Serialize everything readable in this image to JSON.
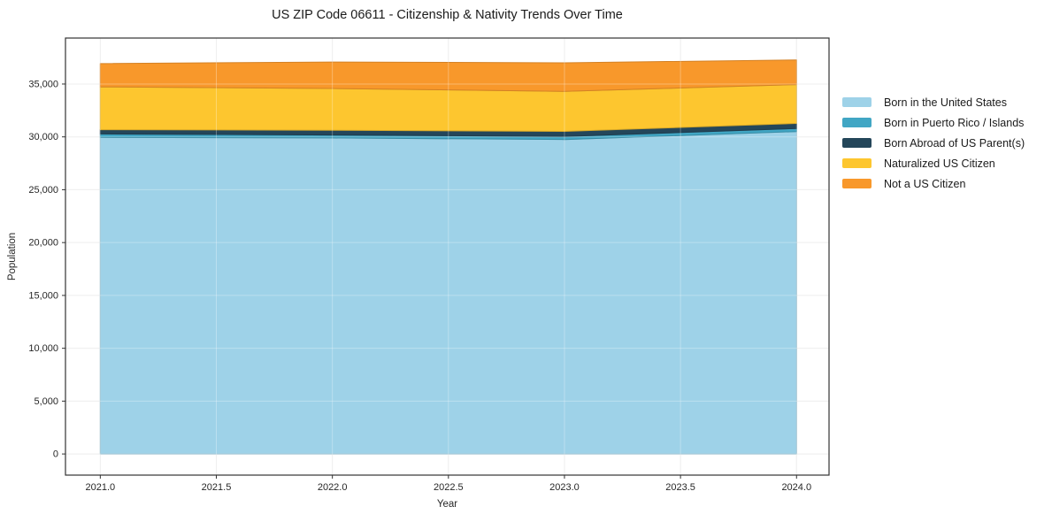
{
  "chart_data": {
    "type": "area",
    "stacked": true,
    "title": "US ZIP Code 06611 - Citizenship & Nativity Trends Over Time",
    "xlabel": "Year",
    "ylabel": "Population",
    "x": [
      2021,
      2022,
      2023,
      2024
    ],
    "series": [
      {
        "name": "Born in the United States",
        "color": "#9ed2e8",
        "values": [
          29950,
          29900,
          29750,
          30500
        ]
      },
      {
        "name": "Born in Puerto Rico / Islands",
        "color": "#41a6c4",
        "values": [
          330,
          280,
          290,
          290
        ]
      },
      {
        "name": "Born Abroad of US Parent(s)",
        "color": "#24465a",
        "values": [
          400,
          450,
          480,
          480
        ]
      },
      {
        "name": "Naturalized US Citizen",
        "color": "#fdc62f",
        "values": [
          4050,
          3950,
          3780,
          3680
        ]
      },
      {
        "name": "Not a US Citizen",
        "color": "#f8982b",
        "values": [
          2200,
          2500,
          2710,
          2330
        ]
      }
    ],
    "xlim": [
      2020.85,
      2024.14
    ],
    "ylim": [
      -2000,
      39350
    ],
    "xticks": [
      {
        "value": 2021.0,
        "label": "2021.0"
      },
      {
        "value": 2021.5,
        "label": "2021.5"
      },
      {
        "value": 2022.0,
        "label": "2022.0"
      },
      {
        "value": 2022.5,
        "label": "2022.5"
      },
      {
        "value": 2023.0,
        "label": "2023.0"
      },
      {
        "value": 2023.5,
        "label": "2023.5"
      },
      {
        "value": 2024.0,
        "label": "2024.0"
      }
    ],
    "yticks": [
      {
        "value": 0,
        "label": "0"
      },
      {
        "value": 5000,
        "label": "5,000"
      },
      {
        "value": 10000,
        "label": "10,000"
      },
      {
        "value": 15000,
        "label": "15,000"
      },
      {
        "value": 20000,
        "label": "20,000"
      },
      {
        "value": 25000,
        "label": "25,000"
      },
      {
        "value": 30000,
        "label": "30,000"
      },
      {
        "value": 35000,
        "label": "35,000"
      }
    ],
    "grid": true,
    "legend_position": "right-outside"
  },
  "colors": {
    "grid": "#e8e8e8",
    "grid_overlay": "rgba(255,255,255,0.3)",
    "spine": "#333333",
    "tick_text": "#262626",
    "background": "#ffffff"
  }
}
